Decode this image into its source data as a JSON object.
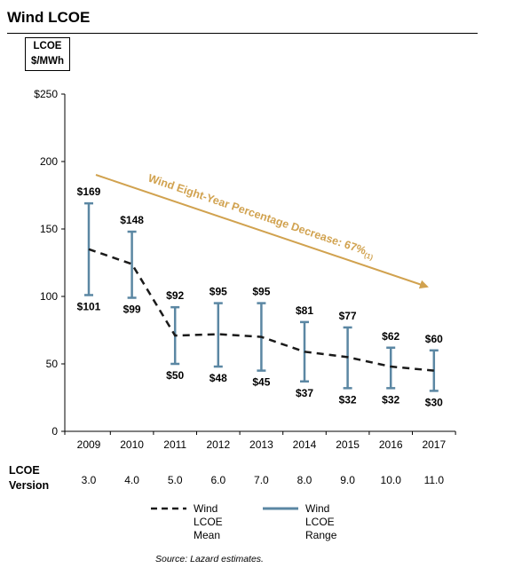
{
  "page": {
    "title": "Wind LCOE",
    "source": "Source:  Lazard estimates."
  },
  "unit_box": {
    "line1": "LCOE",
    "line2": "$/MWh"
  },
  "version_row": {
    "label_line1": "LCOE",
    "label_line2": "Version",
    "values": [
      "3.0",
      "4.0",
      "5.0",
      "6.0",
      "7.0",
      "8.0",
      "9.0",
      "10.0",
      "11.0"
    ]
  },
  "legend": {
    "mean_line1": "Wind LCOE",
    "mean_line2": "Mean",
    "range_line1": "Wind LCOE",
    "range_line2": "Range"
  },
  "colors": {
    "range": "#5b87a3",
    "mean": "#1a1a1a",
    "annotation": "#d1a24f"
  },
  "chart_data": {
    "type": "line",
    "title": "Wind LCOE",
    "ylabel": "LCOE $/MWh",
    "ylim": [
      0,
      250
    ],
    "yticks": [
      0,
      50,
      100,
      150,
      200,
      250
    ],
    "ytick_labels": [
      "0",
      "50",
      "100",
      "150",
      "200",
      "$250"
    ],
    "categories": [
      "2009",
      "2010",
      "2011",
      "2012",
      "2013",
      "2014",
      "2015",
      "2016",
      "2017"
    ],
    "series": [
      {
        "name": "Wind LCOE Mean",
        "style": "dashed",
        "values": [
          135,
          124,
          71,
          72,
          70,
          59,
          55,
          48,
          45
        ]
      },
      {
        "name": "Wind LCOE Range",
        "style": "range",
        "high": [
          169,
          148,
          92,
          95,
          95,
          81,
          77,
          62,
          60
        ],
        "low": [
          101,
          99,
          50,
          48,
          45,
          37,
          32,
          32,
          30
        ],
        "high_labels": [
          "$169",
          "$148",
          "$92",
          "$95",
          "$95",
          "$81",
          "$77",
          "$62",
          "$60"
        ],
        "low_labels": [
          "$101",
          "$99",
          "$50",
          "$48",
          "$45",
          "$37",
          "$32",
          "$32",
          "$30"
        ]
      }
    ],
    "annotation": {
      "text": "Wind Eight-Year Percentage Decrease: 67%",
      "superscript": "(1)"
    }
  }
}
